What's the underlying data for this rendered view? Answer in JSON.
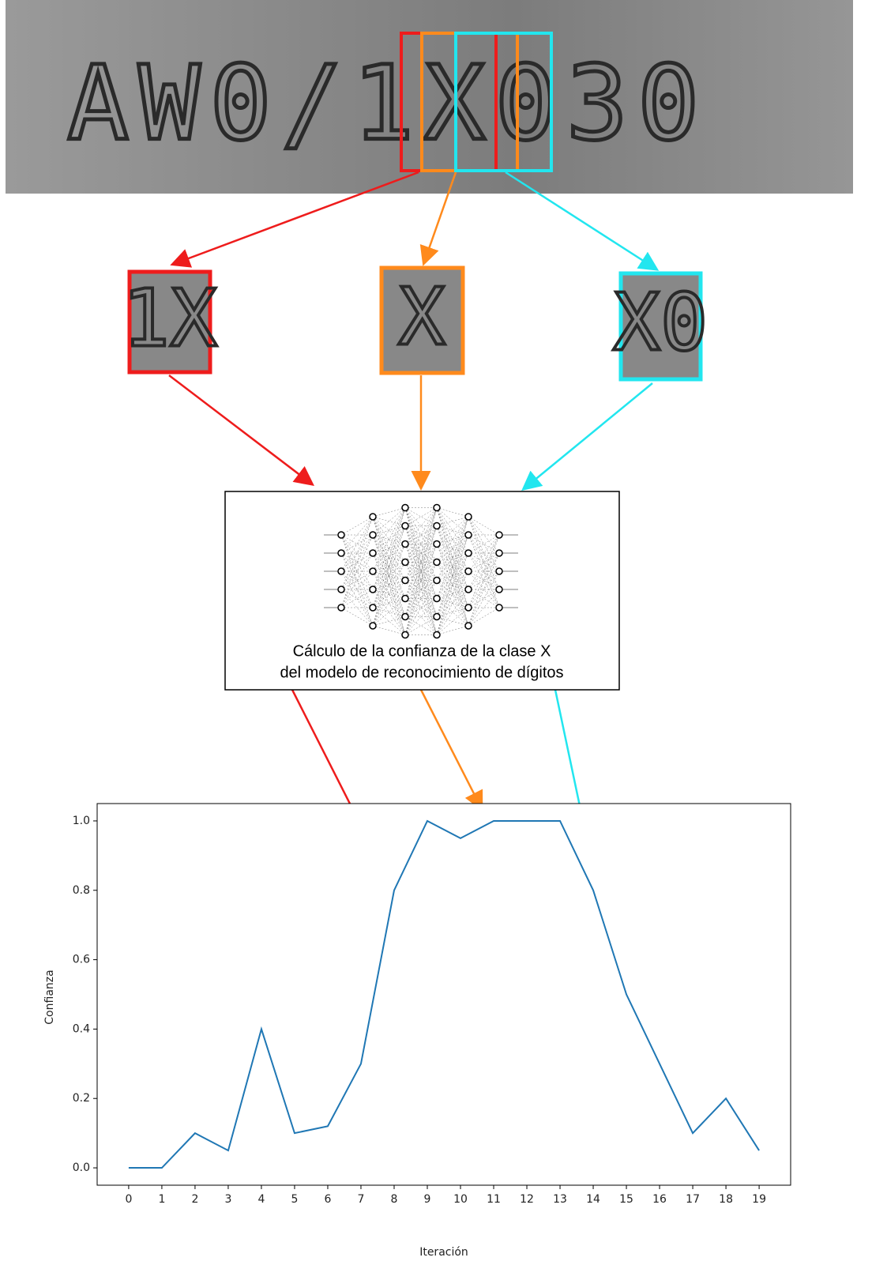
{
  "image": {
    "text": "AW0/1X030",
    "crops": [
      "1X",
      "X",
      "X0"
    ]
  },
  "model": {
    "caption": [
      "Cálculo de la confianza de la clase X",
      "del modelo de reconocimiento de dígitos"
    ]
  },
  "chart_data": {
    "type": "line",
    "xlabel": "Iteración",
    "ylabel": "Confianza",
    "x": [
      0,
      1,
      2,
      3,
      4,
      5,
      6,
      7,
      8,
      9,
      10,
      11,
      12,
      13,
      14,
      15,
      16,
      17,
      18,
      19
    ],
    "series": [
      {
        "color": "#1f77b4",
        "values": [
          0,
          0,
          0.1,
          0.05,
          0.4,
          0.1,
          0.12,
          0.3,
          0.8,
          1.0,
          0.95,
          1.0,
          1.0,
          1.0,
          0.8,
          0.5,
          0.3,
          0.1,
          0.2,
          0.05
        ]
      }
    ],
    "xlim": [
      -0.95,
      19.95
    ],
    "ylim": [
      -0.05,
      1.05
    ],
    "xticks": [
      0,
      1,
      2,
      3,
      4,
      5,
      6,
      7,
      8,
      9,
      10,
      11,
      12,
      13,
      14,
      15,
      16,
      17,
      18,
      19
    ],
    "yticks": [
      {
        "value": 0,
        "label": "0.0"
      },
      0.2,
      0.4,
      0.6,
      0.8,
      {
        "value": 1,
        "label": "1.0"
      }
    ],
    "grid": false
  }
}
